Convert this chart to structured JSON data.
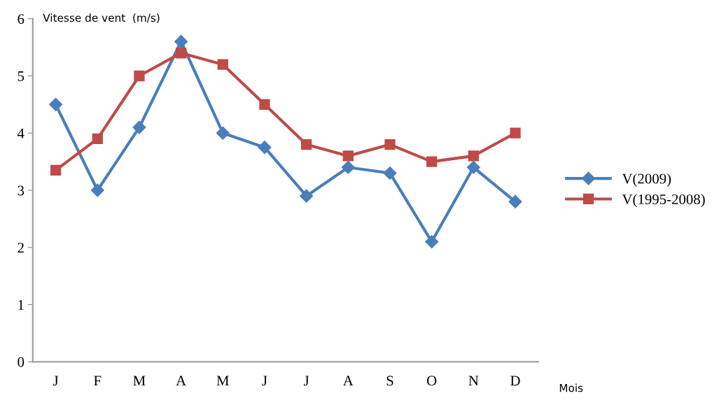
{
  "chart_data": {
    "type": "line",
    "ylabel": "Vitesse de vent  (m/s)",
    "xlabel": "Mois",
    "categories": [
      "J",
      "F",
      "M",
      "A",
      "M",
      "J",
      "J",
      "A",
      "S",
      "O",
      "N",
      "D"
    ],
    "series": [
      {
        "name": "V(2009)",
        "color": "#4a7ebb",
        "marker": "diamond",
        "values": [
          4.5,
          3.0,
          4.1,
          5.6,
          4.0,
          3.75,
          2.9,
          3.4,
          3.3,
          2.1,
          3.4,
          2.8
        ]
      },
      {
        "name": "V(1995-2008)",
        "color": "#be4b48",
        "marker": "square",
        "values": [
          3.35,
          3.9,
          5.0,
          5.4,
          5.2,
          4.5,
          3.8,
          3.6,
          3.8,
          3.5,
          3.6,
          4.0
        ]
      }
    ],
    "ylim": [
      0,
      6
    ],
    "yticks": [
      0,
      1,
      2,
      3,
      4,
      5,
      6
    ],
    "grid": false,
    "legend": "right",
    "line_style": "solid"
  }
}
